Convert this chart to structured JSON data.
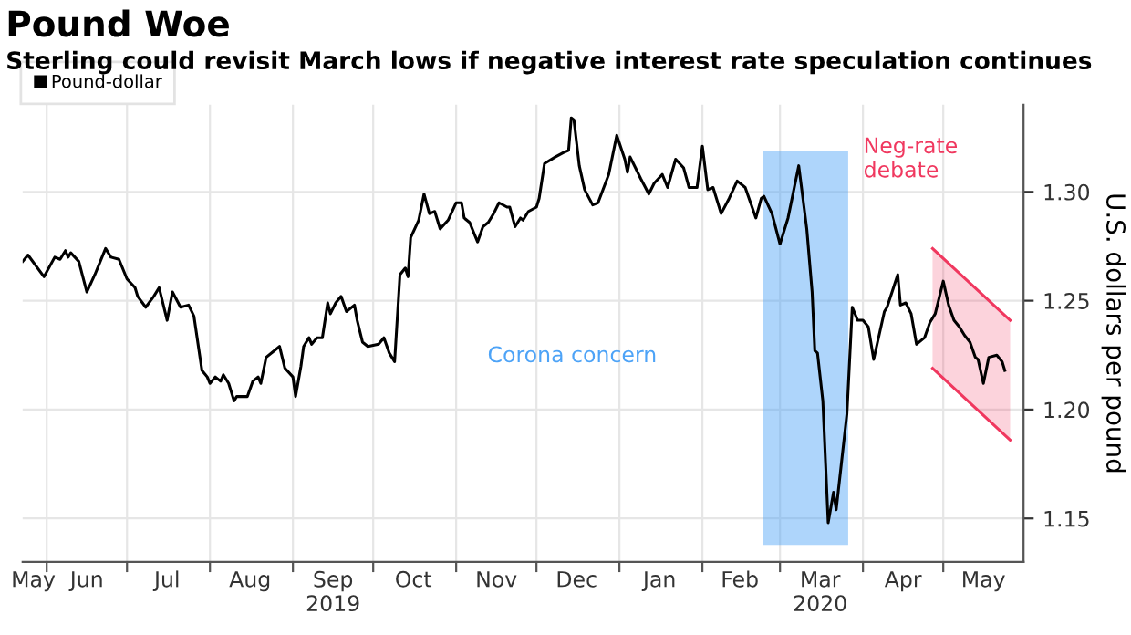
{
  "chart_data": {
    "type": "line",
    "title": "Pound Woe",
    "subtitle": "Sterling could revisit March lows if negative interest rate speculation continues",
    "ylabel": "U.S. dollars per pound",
    "series": [
      {
        "name": "Pound-dollar",
        "color": "#000000",
        "x": [
          "2019-05-23",
          "2019-05-25",
          "2019-05-31",
          "2019-06-04",
          "2019-06-06",
          "2019-06-08",
          "2019-06-09",
          "2019-06-10",
          "2019-06-13",
          "2019-06-16",
          "2019-06-19",
          "2019-06-23",
          "2019-06-25",
          "2019-06-28",
          "2019-07-01",
          "2019-07-04",
          "2019-07-05",
          "2019-07-08",
          "2019-07-11",
          "2019-07-13",
          "2019-07-16",
          "2019-07-18",
          "2019-07-21",
          "2019-07-24",
          "2019-07-26",
          "2019-07-29",
          "2019-07-31",
          "2019-08-01",
          "2019-08-03",
          "2019-08-05",
          "2019-08-06",
          "2019-08-08",
          "2019-08-10",
          "2019-08-11",
          "2019-08-15",
          "2019-08-17",
          "2019-08-19",
          "2019-08-20",
          "2019-08-22",
          "2019-08-25",
          "2019-08-27",
          "2019-08-29",
          "2019-09-01",
          "2019-09-02",
          "2019-09-04",
          "2019-09-05",
          "2019-09-07",
          "2019-09-08",
          "2019-09-10",
          "2019-09-12",
          "2019-09-14",
          "2019-09-15",
          "2019-09-17",
          "2019-09-19",
          "2019-09-21",
          "2019-09-24",
          "2019-09-25",
          "2019-09-27",
          "2019-09-29",
          "2019-10-03",
          "2019-10-05",
          "2019-10-07",
          "2019-10-09",
          "2019-10-11",
          "2019-10-13",
          "2019-10-14",
          "2019-10-15",
          "2019-10-18",
          "2019-10-20",
          "2019-10-22",
          "2019-10-24",
          "2019-10-26",
          "2019-10-29",
          "2019-11-01",
          "2019-11-03",
          "2019-11-04",
          "2019-11-06",
          "2019-11-09",
          "2019-11-11",
          "2019-11-13",
          "2019-11-15",
          "2019-11-17",
          "2019-11-20",
          "2019-11-21",
          "2019-11-23",
          "2019-11-25",
          "2019-11-26",
          "2019-11-28",
          "2019-12-01",
          "2019-12-02",
          "2019-12-04",
          "2019-12-08",
          "2019-12-11",
          "2019-12-13",
          "2019-12-14",
          "2019-12-15",
          "2019-12-17",
          "2019-12-19",
          "2019-12-22",
          "2019-12-24",
          "2019-12-28",
          "2019-12-31",
          "2020-01-03",
          "2020-01-04",
          "2020-01-05",
          "2020-01-07",
          "2020-01-09",
          "2020-01-12",
          "2020-01-14",
          "2020-01-17",
          "2020-01-19",
          "2020-01-22",
          "2020-01-25",
          "2020-01-27",
          "2020-01-30",
          "2020-02-01",
          "2020-02-03",
          "2020-02-05",
          "2020-02-08",
          "2020-02-11",
          "2020-02-14",
          "2020-02-17",
          "2020-02-19",
          "2020-02-21",
          "2020-02-23",
          "2020-02-24",
          "2020-02-27",
          "2020-03-01",
          "2020-03-04",
          "2020-03-08",
          "2020-03-11",
          "2020-03-13",
          "2020-03-14",
          "2020-03-15",
          "2020-03-17",
          "2020-03-19",
          "2020-03-21",
          "2020-03-22",
          "2020-03-24",
          "2020-03-26",
          "2020-03-28",
          "2020-03-30",
          "2020-04-01",
          "2020-04-03",
          "2020-04-05",
          "2020-04-07",
          "2020-04-09",
          "2020-04-10",
          "2020-04-14",
          "2020-04-15",
          "2020-04-17",
          "2020-04-19",
          "2020-04-21",
          "2020-04-24",
          "2020-04-26",
          "2020-04-28",
          "2020-05-01",
          "2020-05-03",
          "2020-05-05",
          "2020-05-07",
          "2020-05-09",
          "2020-05-11",
          "2020-05-13",
          "2020-05-14",
          "2020-05-16",
          "2020-05-18",
          "2020-05-21",
          "2020-05-23",
          "2020-05-24"
        ],
        "values": [
          1.268,
          1.271,
          1.261,
          1.27,
          1.269,
          1.273,
          1.27,
          1.272,
          1.268,
          1.254,
          1.262,
          1.274,
          1.27,
          1.269,
          1.26,
          1.256,
          1.252,
          1.247,
          1.252,
          1.256,
          1.241,
          1.254,
          1.247,
          1.248,
          1.243,
          1.218,
          1.215,
          1.212,
          1.215,
          1.213,
          1.216,
          1.212,
          1.204,
          1.206,
          1.206,
          1.213,
          1.215,
          1.212,
          1.224,
          1.227,
          1.229,
          1.219,
          1.215,
          1.206,
          1.22,
          1.229,
          1.233,
          1.23,
          1.233,
          1.233,
          1.249,
          1.244,
          1.249,
          1.252,
          1.245,
          1.248,
          1.241,
          1.231,
          1.229,
          1.23,
          1.233,
          1.226,
          1.222,
          1.262,
          1.265,
          1.261,
          1.279,
          1.287,
          1.299,
          1.29,
          1.291,
          1.283,
          1.287,
          1.295,
          1.295,
          1.288,
          1.286,
          1.277,
          1.284,
          1.286,
          1.29,
          1.295,
          1.293,
          1.293,
          1.284,
          1.288,
          1.287,
          1.291,
          1.293,
          1.297,
          1.313,
          1.316,
          1.318,
          1.319,
          1.334,
          1.333,
          1.312,
          1.301,
          1.294,
          1.295,
          1.308,
          1.326,
          1.315,
          1.309,
          1.316,
          1.311,
          1.306,
          1.299,
          1.304,
          1.308,
          1.302,
          1.315,
          1.311,
          1.302,
          1.302,
          1.321,
          1.301,
          1.302,
          1.29,
          1.297,
          1.305,
          1.302,
          1.295,
          1.288,
          1.297,
          1.298,
          1.29,
          1.276,
          1.288,
          1.312,
          1.283,
          1.254,
          1.227,
          1.226,
          1.204,
          1.148,
          1.162,
          1.154,
          1.176,
          1.198,
          1.247,
          1.241,
          1.241,
          1.238,
          1.223,
          1.234,
          1.245,
          1.247,
          1.262,
          1.248,
          1.249,
          1.244,
          1.23,
          1.233,
          1.24,
          1.244,
          1.259,
          1.248,
          1.241,
          1.238,
          1.234,
          1.231,
          1.224,
          1.223,
          1.212,
          1.224,
          1.225,
          1.222,
          1.218
        ]
      },
      {
        "color": "#f0385f",
        "x": [
          "2020-04-27",
          "2020-05-26"
        ],
        "values": [
          1.274,
          1.241
        ]
      },
      {
        "color": "#f0385f",
        "x": [
          "2020-04-27",
          "2020-05-26"
        ],
        "values": [
          1.219,
          1.186
        ]
      }
    ],
    "bands": [
      {
        "axis": "x",
        "from": "2020-02-24",
        "to": "2020-03-26",
        "label": "Corona concern",
        "color": "#4da3f7"
      }
    ],
    "annotations": [
      "Neg-rate\ndebate"
    ],
    "xlim": [
      "2019-05-23",
      "2020-05-31"
    ],
    "xticks": [
      {
        "value": "2019-06-01",
        "label": null
      },
      {
        "value": "2019-07-01",
        "label": null
      },
      {
        "value": "2019-08-01",
        "label": null
      },
      {
        "value": "2019-09-01",
        "label": null
      },
      {
        "value": "2019-10-01",
        "label": null
      },
      {
        "value": "2019-11-01",
        "label": null
      },
      {
        "value": "2019-12-01",
        "label": null
      },
      {
        "value": "2020-01-01",
        "label": null
      },
      {
        "value": "2020-02-01",
        "label": null
      },
      {
        "value": "2020-03-01",
        "label": null
      },
      {
        "value": "2020-04-01",
        "label": null
      },
      {
        "value": "2020-05-01",
        "label": null
      },
      {
        "value": "2019-05-27",
        "label": "May"
      },
      {
        "value": "2019-06-16",
        "label": "Jun"
      },
      {
        "value": "2019-07-16",
        "label": "Jul"
      },
      {
        "value": "2019-08-16",
        "label": "Aug"
      },
      {
        "value": "2019-09-16",
        "label": "Sep\n2019"
      },
      {
        "value": "2019-10-16",
        "label": "Oct"
      },
      {
        "value": "2019-11-16",
        "label": "Nov"
      },
      {
        "value": "2019-12-16",
        "label": "Dec"
      },
      {
        "value": "2020-01-16",
        "label": "Jan"
      },
      {
        "value": "2020-02-15",
        "label": "Feb"
      },
      {
        "value": "2020-03-16",
        "label": "Mar\n2020"
      },
      {
        "value": "2020-04-16",
        "label": "Apr"
      },
      {
        "value": "2020-05-16",
        "label": "May"
      }
    ],
    "ylim": [
      1.13,
      1.34
    ],
    "yticks": [
      {
        "value": 1.15,
        "label": "1.15"
      },
      {
        "value": 1.2,
        "label": "1.20"
      },
      {
        "value": 1.25,
        "label": "1.25"
      },
      {
        "value": 1.3,
        "label": "1.30"
      }
    ],
    "grid": true,
    "legend": "top left"
  }
}
